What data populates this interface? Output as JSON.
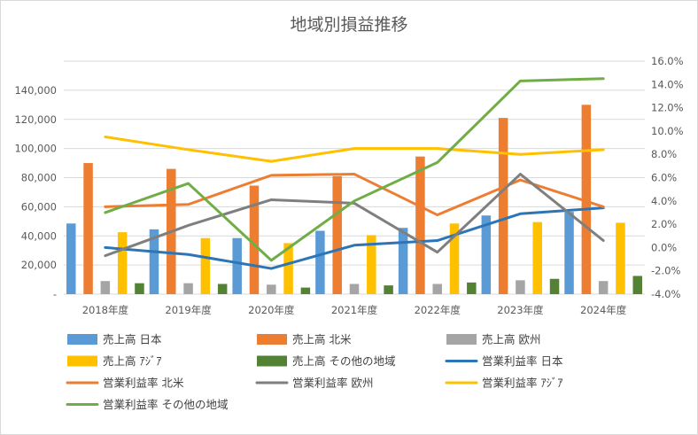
{
  "chart_data": {
    "type": "bar+line",
    "title": "地域別損益推移",
    "categories": [
      "2018年度",
      "2019年度",
      "2020年度",
      "2021年度",
      "2022年度",
      "2023年度",
      "2024年度"
    ],
    "left_axis": {
      "ylim": [
        0,
        160000
      ],
      "ticks": [
        0,
        20000,
        40000,
        60000,
        80000,
        100000,
        120000,
        140000
      ],
      "tick_labels": [
        "-",
        "20,000",
        "40,000",
        "60,000",
        "80,000",
        "100,000",
        "120,000",
        "140,000"
      ]
    },
    "right_axis": {
      "ylim": [
        -4.0,
        16.0
      ],
      "ticks": [
        -4,
        -2,
        0,
        2,
        4,
        6,
        8,
        10,
        12,
        14,
        16
      ],
      "tick_labels": [
        "-4.0%",
        "-2.0%",
        "0.0%",
        "2.0%",
        "4.0%",
        "6.0%",
        "8.0%",
        "10.0%",
        "12.0%",
        "14.0%",
        "16.0%"
      ]
    },
    "bar_series": [
      {
        "name": "売上高 日本",
        "color": "#5b9bd5",
        "values": [
          48500,
          44500,
          38500,
          43500,
          45500,
          54000,
          56500
        ]
      },
      {
        "name": "売上高 北米",
        "color": "#ed7d31",
        "values": [
          90000,
          86000,
          74500,
          81000,
          94500,
          121000,
          130000
        ]
      },
      {
        "name": "売上高 欧州",
        "color": "#a5a5a5",
        "values": [
          9000,
          7500,
          6500,
          7000,
          7000,
          9500,
          9000
        ]
      },
      {
        "name": "売上高 ｱｼﾞｱ",
        "color": "#ffc000",
        "values": [
          42500,
          38500,
          35000,
          40500,
          48500,
          49500,
          49000
        ]
      },
      {
        "name": "売上高 その他の地域",
        "color": "#548235",
        "values": [
          7500,
          7000,
          4500,
          6000,
          8000,
          10500,
          12500
        ]
      }
    ],
    "line_series": [
      {
        "name": "営業利益率 日本",
        "color": "#2e75b6",
        "values": [
          0.0,
          -0.6,
          -1.8,
          0.2,
          0.6,
          2.9,
          3.4
        ]
      },
      {
        "name": "営業利益率 北米",
        "color": "#ed7d31",
        "values": [
          3.5,
          3.7,
          6.2,
          6.3,
          2.8,
          5.8,
          3.5
        ]
      },
      {
        "name": "営業利益率 欧州",
        "color": "#7f7f7f",
        "values": [
          -0.7,
          1.9,
          4.1,
          3.8,
          -0.4,
          6.3,
          0.6
        ]
      },
      {
        "name": "営業利益率 ｱｼﾞｱ",
        "color": "#ffc000",
        "values": [
          9.5,
          8.4,
          7.4,
          8.5,
          8.5,
          8.0,
          8.4
        ]
      },
      {
        "name": "営業利益率 その他の地域",
        "color": "#70ad47",
        "values": [
          3.0,
          5.5,
          -1.1,
          4.0,
          7.3,
          14.3,
          14.5
        ]
      }
    ],
    "legend_position": "bottom"
  }
}
